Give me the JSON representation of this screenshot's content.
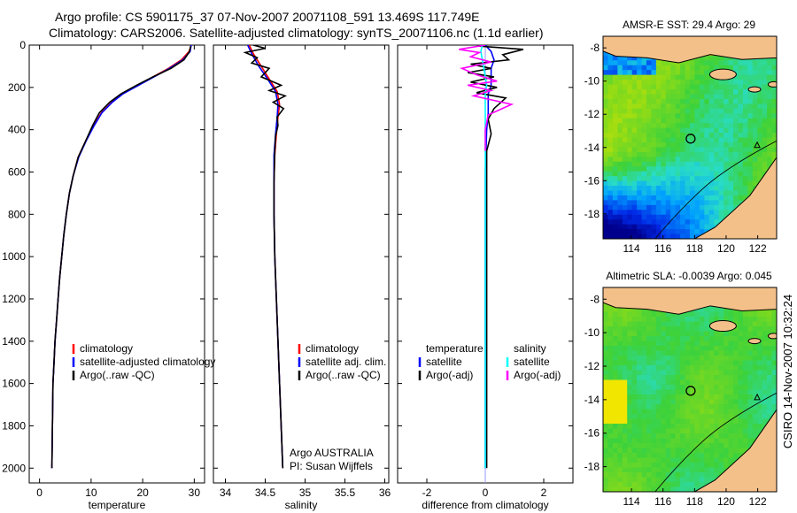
{
  "title": {
    "line1": "Argo profile: CS 5901175_37 07-Nov-2007 20071108_591 13.469S 117.749E",
    "line2": "Climatology: CARS2006. Satellite-adjusted climatology: synTS_20071106.nc (1.1d earlier)"
  },
  "colors": {
    "climatology": "#ff0000",
    "satellite": "#0000ff",
    "argo": "#000000",
    "salinity_satellite": "#00ffff",
    "salinity_argo": "#ff00ff",
    "land": "#f4c08a"
  },
  "chart_data": [
    {
      "type": "line",
      "name": "temperature-profile",
      "xlabel": "temperature",
      "ylabel": "",
      "xlim": [
        -2,
        32
      ],
      "ylim": [
        2070,
        0
      ],
      "xticks": [
        "0",
        "10",
        "20",
        "30"
      ],
      "xtick_values": [
        0,
        10,
        20,
        30
      ],
      "yticks": [
        "0",
        "200",
        "400",
        "600",
        "800",
        "1000",
        "1200",
        "1400",
        "1600",
        "1800",
        "2000"
      ],
      "ytick_values": [
        0,
        200,
        400,
        600,
        800,
        1000,
        1200,
        1400,
        1600,
        1800,
        2000
      ],
      "legend": [
        "climatology",
        "satellite-adjusted climatology",
        "Argo(..raw -QC)"
      ],
      "series": [
        {
          "name": "climatology",
          "color": "#ff0000",
          "x": [
            29.4,
            29,
            27.5,
            25,
            22,
            19,
            16,
            14,
            12,
            10.5,
            9,
            7.5,
            6.5,
            5.8,
            5.2,
            4.7,
            4.3,
            3.9,
            3.6,
            3.3,
            3.0,
            2.8,
            2.6,
            2.5,
            2.4
          ],
          "y": [
            0,
            30,
            70,
            110,
            150,
            190,
            230,
            270,
            320,
            380,
            450,
            530,
            620,
            700,
            800,
            900,
            1000,
            1100,
            1200,
            1300,
            1400,
            1500,
            1600,
            1800,
            2000
          ]
        },
        {
          "name": "satellite-adjusted climatology",
          "color": "#0000ff",
          "x": [
            29.4,
            29.2,
            27.8,
            25.2,
            22.2,
            19.2,
            16.2,
            14.1,
            12.1,
            10.6,
            9.1,
            7.6,
            6.5,
            5.8,
            5.2,
            4.7,
            4.3,
            3.9,
            3.6,
            3.3,
            3.0,
            2.8,
            2.6,
            2.5,
            2.4
          ],
          "y": [
            0,
            30,
            70,
            110,
            150,
            190,
            230,
            270,
            320,
            380,
            450,
            530,
            620,
            700,
            800,
            900,
            1000,
            1100,
            1200,
            1300,
            1400,
            1500,
            1600,
            1800,
            2000
          ]
        },
        {
          "name": "Argo(..raw -QC)",
          "color": "#000000",
          "x": [
            29.3,
            29.1,
            28.0,
            25.5,
            22.0,
            18.8,
            15.8,
            13.6,
            11.6,
            10.3,
            9.0,
            7.5,
            6.5,
            5.8,
            5.2,
            4.7,
            4.3,
            3.9,
            3.6,
            3.3,
            3.0,
            2.8,
            2.6,
            2.5,
            2.4
          ],
          "y": [
            5,
            30,
            70,
            110,
            150,
            190,
            230,
            270,
            320,
            380,
            450,
            530,
            620,
            700,
            800,
            900,
            1000,
            1100,
            1200,
            1300,
            1400,
            1500,
            1600,
            1800,
            2000
          ]
        }
      ]
    },
    {
      "type": "line",
      "name": "salinity-profile",
      "xlabel": "salinity",
      "xlim": [
        33.85,
        36.05
      ],
      "ylim": [
        2070,
        0
      ],
      "xticks": [
        "34",
        "34.5",
        "35",
        "35.5",
        "36"
      ],
      "xtick_values": [
        34,
        34.5,
        35,
        35.5,
        36
      ],
      "legend": [
        "climatology",
        "satellite adj. clim.",
        "Argo(..raw -QC)"
      ],
      "annotations": [
        "Argo AUSTRALIA",
        "PI: Susan Wijffels"
      ],
      "series": [
        {
          "name": "climatology",
          "color": "#ff0000",
          "x": [
            34.3,
            34.35,
            34.45,
            34.55,
            34.65,
            34.68,
            34.66,
            34.64,
            34.62,
            34.61,
            34.61,
            34.62,
            34.64,
            34.66,
            34.68,
            34.7,
            34.71,
            34.72
          ],
          "y": [
            0,
            40,
            100,
            160,
            220,
            280,
            340,
            420,
            520,
            650,
            800,
            1000,
            1200,
            1400,
            1600,
            1800,
            1900,
            2000
          ]
        },
        {
          "name": "satellite adj. clim.",
          "color": "#0000ff",
          "x": [
            34.28,
            34.33,
            34.42,
            34.53,
            34.63,
            34.66,
            34.65,
            34.63,
            34.61,
            34.61,
            34.61,
            34.62,
            34.64,
            34.66,
            34.68,
            34.7,
            34.71,
            34.72
          ],
          "y": [
            0,
            40,
            100,
            160,
            220,
            280,
            340,
            420,
            520,
            650,
            800,
            1000,
            1200,
            1400,
            1600,
            1800,
            1900,
            2000
          ]
        },
        {
          "name": "Argo(..raw -QC)",
          "color": "#000000",
          "x": [
            34.35,
            34.5,
            34.25,
            34.4,
            34.33,
            34.55,
            34.45,
            34.7,
            34.55,
            34.75,
            34.6,
            34.73,
            34.65,
            34.66,
            34.63,
            34.62,
            34.61,
            34.61,
            34.62,
            34.64,
            34.66,
            34.68,
            34.7,
            34.71,
            34.72
          ],
          "y": [
            0,
            15,
            35,
            60,
            85,
            110,
            150,
            190,
            215,
            240,
            270,
            300,
            340,
            380,
            430,
            500,
            650,
            800,
            1000,
            1200,
            1400,
            1600,
            1800,
            1900,
            2000
          ]
        }
      ]
    },
    {
      "type": "line",
      "name": "difference-profile",
      "xlabel": "difference from climatology",
      "xlim": [
        -3,
        3
      ],
      "ylim": [
        2070,
        0
      ],
      "xticks": [
        "-2",
        "0",
        "2"
      ],
      "xtick_values": [
        -2,
        0,
        2
      ],
      "legend": [
        "temperature",
        "satellite",
        "Argo(-adj)",
        "salinity",
        "satellite",
        "Argo(-adj)"
      ],
      "series": [
        {
          "name": "temperature satellite",
          "color": "#0000ff",
          "x": [
            0.0,
            0.2,
            0.3,
            0.2,
            0.2,
            0.2,
            0.1,
            0.1,
            0.1,
            0.05,
            0.0,
            0.0,
            0.0,
            0.0
          ],
          "y": [
            0,
            30,
            70,
            110,
            150,
            190,
            230,
            270,
            320,
            400,
            600,
            1000,
            1500,
            2000
          ]
        },
        {
          "name": "temperature Argo(-adj)",
          "color": "#000000",
          "x": [
            -0.2,
            1.3,
            0.6,
            0.8,
            -0.5,
            0.2,
            -0.6,
            0.3,
            -0.5,
            0.4,
            -0.3,
            0.7,
            0.3,
            0.1,
            0.2,
            0.05,
            0.05,
            0.05,
            0.05,
            0.05,
            0.05
          ],
          "y": [
            5,
            20,
            45,
            70,
            90,
            110,
            130,
            150,
            175,
            200,
            225,
            250,
            300,
            350,
            420,
            500,
            700,
            1000,
            1400,
            1800,
            2000
          ]
        },
        {
          "name": "salinity satellite",
          "color": "#00ffff",
          "x": [
            -0.1,
            -0.15,
            -0.1,
            -0.05,
            0.0,
            0.05,
            0.0,
            0.0,
            0.0,
            0.0,
            0.0,
            0.0,
            0.0
          ],
          "y": [
            0,
            30,
            70,
            110,
            150,
            190,
            230,
            270,
            320,
            400,
            800,
            1400,
            2000
          ]
        },
        {
          "name": "salinity Argo(-adj)",
          "color": "#ff00ff",
          "x": [
            0.0,
            -0.9,
            -0.2,
            -0.5,
            0.2,
            -0.8,
            -0.3,
            0.4,
            -0.6,
            0.2,
            -0.4,
            0.9,
            0.1,
            0.0,
            0.0,
            0.0
          ],
          "y": [
            0,
            20,
            35,
            55,
            80,
            110,
            140,
            170,
            190,
            215,
            240,
            280,
            330,
            400,
            450,
            500
          ]
        }
      ]
    }
  ],
  "maps": [
    {
      "name": "sst-map",
      "title": "AMSR-E SST: 29.4 Argo: 29",
      "xticks": [
        "114",
        "116",
        "118",
        "120",
        "122"
      ],
      "yticks": [
        "-8",
        "-10",
        "-12",
        "-14",
        "-16",
        "-18"
      ],
      "marker_lon": 117.75,
      "marker_lat": -13.47
    },
    {
      "name": "sla-map",
      "title": "Altimetric SLA: -0.0039 Argo: 0.045",
      "xticks": [
        "114",
        "116",
        "118",
        "120",
        "122"
      ],
      "yticks": [
        "-8",
        "-10",
        "-12",
        "-14",
        "-16",
        "-18"
      ],
      "marker_lon": 117.75,
      "marker_lat": -13.47
    }
  ],
  "footer": {
    "stamp": "CSIRO 14-Nov-2007 10:32:24"
  }
}
